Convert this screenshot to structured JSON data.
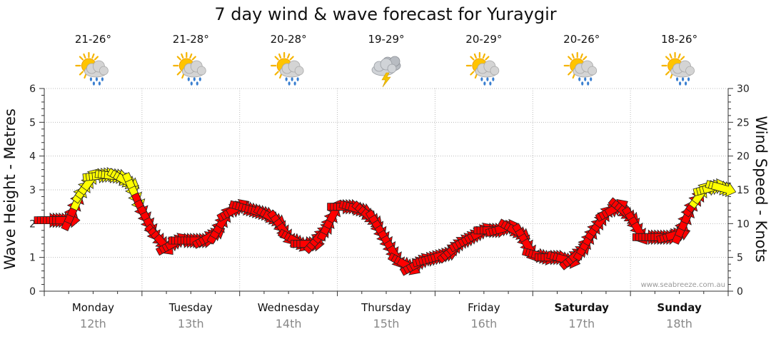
{
  "title": "7 day wind & wave forecast for Yuraygir",
  "watermark": "www.seabreeze.com.au",
  "colors": {
    "strong_wind": "#ff0000",
    "moderate_wind": "#ffff00",
    "outline": "#222222",
    "grid": "#bbbbbb"
  },
  "days": [
    {
      "day": "Monday",
      "date": "12th",
      "temp": "21-26°",
      "icon": "sun-cloud-rain-icon",
      "bold": false
    },
    {
      "day": "Tuesday",
      "date": "13th",
      "temp": "21-28°",
      "icon": "sun-cloud-rain-icon",
      "bold": false
    },
    {
      "day": "Wednesday",
      "date": "14th",
      "temp": "20-28°",
      "icon": "sun-cloud-rain-icon",
      "bold": false
    },
    {
      "day": "Thursday",
      "date": "15th",
      "temp": "19-29°",
      "icon": "storm-cloud-lightning-icon",
      "bold": false
    },
    {
      "day": "Friday",
      "date": "16th",
      "temp": "20-29°",
      "icon": "sun-cloud-rain-icon",
      "bold": false
    },
    {
      "day": "Saturday",
      "date": "17th",
      "temp": "20-26°",
      "icon": "sun-cloud-rain-icon",
      "bold": true
    },
    {
      "day": "Sunday",
      "date": "18th",
      "temp": "18-26°",
      "icon": "sun-cloud-rain-icon",
      "bold": true
    }
  ],
  "chart_data": {
    "type": "scatter",
    "title": "7 day wind & wave forecast for Yuraygir",
    "xlabel": "",
    "ylabel": "Wave Height - Metres",
    "y2label": "Wind Speed - Knots",
    "ylim": [
      0,
      6
    ],
    "y2lim": [
      0,
      30
    ],
    "yticks": [
      "0",
      "1",
      "2",
      "3",
      "4",
      "5",
      "6"
    ],
    "y2ticks": [
      "0",
      "5",
      "10",
      "15",
      "20",
      "25",
      "30"
    ],
    "x_unit": "hours from Monday 00:00",
    "xlim": [
      0,
      168
    ],
    "grid": true,
    "categories": [
      "Monday 12th",
      "Tuesday 13th",
      "Wednesday 14th",
      "Thursday 15th",
      "Friday 16th",
      "Saturday 17th",
      "Sunday 18th"
    ],
    "wind_knots": {
      "x": [
        0,
        3,
        6,
        9,
        12,
        15,
        18,
        21,
        24,
        27,
        30,
        33,
        36,
        39,
        42,
        45,
        48,
        51,
        54,
        57,
        60,
        63,
        66,
        69,
        72,
        75,
        78,
        81,
        84,
        87,
        90,
        93,
        96,
        99,
        102,
        105,
        108,
        111,
        114,
        117,
        120,
        123,
        126,
        129,
        132,
        135,
        138,
        141,
        144,
        147,
        150,
        153,
        156,
        159,
        162,
        165,
        168
      ],
      "y": [
        10.5,
        10.5,
        10.5,
        14.5,
        17.0,
        17.2,
        17.0,
        16.0,
        12.0,
        8.5,
        6.5,
        7.5,
        7.5,
        7.5,
        8.5,
        11.5,
        12.5,
        12.0,
        11.5,
        10.5,
        8.0,
        7.0,
        7.0,
        9.0,
        12.5,
        12.5,
        12.0,
        10.5,
        7.5,
        4.5,
        3.5,
        4.5,
        5.0,
        5.5,
        7.0,
        8.0,
        9.0,
        9.0,
        9.5,
        8.5,
        5.5,
        5.0,
        5.0,
        4.5,
        6.0,
        9.0,
        11.5,
        12.5,
        11.0,
        8.0,
        8.0,
        8.0,
        8.5,
        12.5,
        15.0,
        15.5,
        15.0
      ]
    }
  }
}
